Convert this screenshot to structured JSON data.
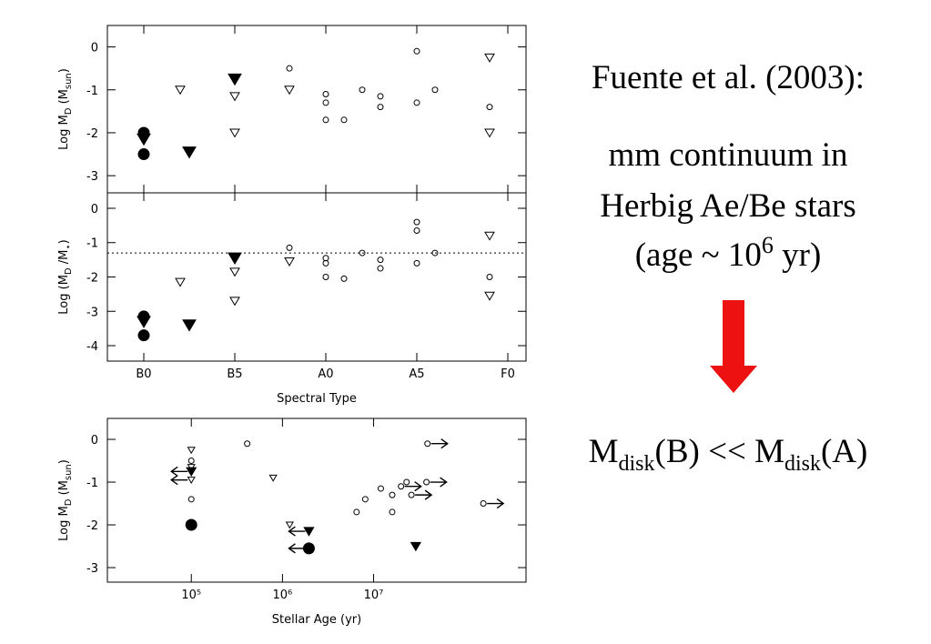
{
  "chart_data": [
    {
      "type": "scatter",
      "y_label": [
        "Log M",
        "D",
        " (M",
        "sun",
        ")"
      ],
      "xlim": [
        -2,
        21
      ],
      "xticks": [
        0,
        5,
        10,
        15,
        20
      ],
      "ylim": [
        -3.4,
        0.5
      ],
      "yticks": [
        0,
        -1,
        -2,
        -3
      ],
      "series": [
        {
          "marker": "circle",
          "filled": true,
          "color": "#000000",
          "x": [
            0,
            0
          ],
          "values": [
            -2.0,
            -2.5
          ]
        },
        {
          "marker": "triangle-down",
          "filled": true,
          "color": "#000000",
          "x": [
            0,
            2.5,
            5
          ],
          "values": [
            -2.15,
            -2.45,
            -0.75
          ]
        },
        {
          "marker": "triangle-down",
          "filled": false,
          "color": "#000000",
          "x": [
            2,
            5,
            5,
            8,
            19,
            19
          ],
          "values": [
            -1.0,
            -1.15,
            -2.0,
            -1.0,
            -0.25,
            -2.0
          ]
        },
        {
          "marker": "circle",
          "filled": false,
          "color": "#000000",
          "x": [
            8,
            10,
            10,
            10,
            11,
            12,
            13,
            13,
            15,
            15,
            16,
            19
          ],
          "values": [
            -0.5,
            -1.1,
            -1.3,
            -1.7,
            -1.7,
            -1.0,
            -1.15,
            -1.4,
            -0.1,
            -1.3,
            -1.0,
            -1.4
          ]
        }
      ]
    },
    {
      "type": "scatter",
      "y_label": [
        "Log (M",
        "D",
        " /M",
        "⋆",
        ")"
      ],
      "x_label": "Spectral Type",
      "xlim": [
        -2,
        21
      ],
      "xticks": [
        {
          "value": 0,
          "label": "B0"
        },
        {
          "value": 5,
          "label": "B5"
        },
        {
          "value": 10,
          "label": "A0"
        },
        {
          "value": 15,
          "label": "A5"
        },
        {
          "value": 20,
          "label": "F0"
        }
      ],
      "ylim": [
        -4.45,
        0.45
      ],
      "yticks": [
        0,
        -1,
        -2,
        -3,
        -4
      ],
      "hline": -1.3,
      "series": [
        {
          "marker": "circle",
          "filled": true,
          "color": "#000000",
          "x": [
            0,
            0
          ],
          "values": [
            -3.15,
            -3.7
          ]
        },
        {
          "marker": "triangle-down",
          "filled": true,
          "color": "#000000",
          "x": [
            0,
            2.5,
            5
          ],
          "values": [
            -3.3,
            -3.4,
            -1.45
          ]
        },
        {
          "marker": "triangle-down",
          "filled": false,
          "color": "#000000",
          "x": [
            2,
            5,
            5,
            8,
            19,
            19
          ],
          "values": [
            -2.15,
            -1.85,
            -2.7,
            -1.55,
            -0.8,
            -2.55
          ]
        },
        {
          "marker": "circle",
          "filled": false,
          "color": "#000000",
          "x": [
            8,
            10,
            10,
            10,
            11,
            12,
            13,
            13,
            15,
            15,
            15,
            16,
            19
          ],
          "values": [
            -1.15,
            -1.45,
            -1.6,
            -2.0,
            -2.05,
            -1.3,
            -1.5,
            -1.75,
            -0.4,
            -0.65,
            -1.6,
            -1.3,
            -2.0
          ]
        }
      ]
    },
    {
      "type": "scatter",
      "y_label": [
        "Log M",
        "D",
        " (M",
        "sun",
        ")"
      ],
      "x_label": "Stellar Age (yr)",
      "xlog": true,
      "xlim": [
        12000,
        470000000
      ],
      "xticks": [
        {
          "value": 100000,
          "label": "10⁵"
        },
        {
          "value": 1000000,
          "label": "10⁶"
        },
        {
          "value": 10000000,
          "label": "10⁷"
        }
      ],
      "ylim": [
        -3.34,
        0.49
      ],
      "yticks": [
        0,
        -1,
        -2,
        -3
      ],
      "series": [
        {
          "marker": "circle",
          "filled": false,
          "color": "#000000",
          "x": [
            100000,
            100000,
            410000,
            6500000,
            8100000,
            12000000,
            16000000,
            16000000,
            20000000,
            23000000,
            26000000,
            38000000,
            39000000,
            160000000
          ],
          "values": [
            -0.5,
            -1.4,
            -0.1,
            -1.7,
            -1.4,
            -1.15,
            -1.3,
            -1.7,
            -1.1,
            -1.0,
            -1.3,
            -1.0,
            -0.1,
            -1.5
          ],
          "limits": [
            null,
            null,
            null,
            null,
            null,
            null,
            null,
            null,
            "right",
            null,
            "right",
            "right",
            "right",
            "right"
          ]
        },
        {
          "marker": "triangle-down",
          "filled": false,
          "color": "#000000",
          "x": [
            100000,
            100000,
            100000,
            790000,
            1200000
          ],
          "values": [
            -0.25,
            -0.65,
            -0.95,
            -0.9,
            -2.0
          ],
          "limits": [
            null,
            null,
            "left",
            null,
            null
          ]
        },
        {
          "marker": "triangle-down",
          "filled": true,
          "color": "#000000",
          "x": [
            100000,
            1950000,
            29000000
          ],
          "values": [
            -0.75,
            -2.15,
            -2.5
          ],
          "limits": [
            "left",
            "left",
            null
          ]
        },
        {
          "marker": "circle",
          "filled": true,
          "color": "#000000",
          "x": [
            100000,
            1950000
          ],
          "values": [
            -2.0,
            -2.55
          ],
          "limits": [
            null,
            "left"
          ]
        }
      ]
    }
  ],
  "slide": {
    "citation": "Fuente et al. (2003):",
    "line1": "mm continuum in",
    "line2": "Herbig Ae/Be stars",
    "line3": [
      "(age ~ 10",
      "6",
      " yr)"
    ],
    "conclusion": [
      "M",
      "disk",
      "(B) << M",
      "disk",
      "(A)"
    ]
  }
}
